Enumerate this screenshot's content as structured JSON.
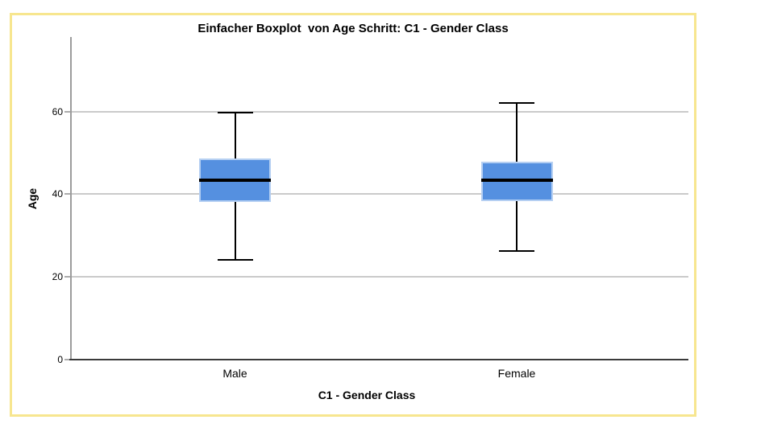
{
  "chart_data": {
    "type": "boxplot",
    "title": "Einfacher Boxplot  von Age Schritt: C1 - Gender Class",
    "xlabel": "C1 - Gender Class",
    "ylabel": "Age",
    "categories": [
      "Male",
      "Female"
    ],
    "yticks": [
      0,
      20,
      40,
      60
    ],
    "ylim": [
      0,
      78
    ],
    "grid": true,
    "legend_position": "none",
    "series": [
      {
        "name": "Male",
        "min": 24.2,
        "q1": 38.2,
        "median": 43.3,
        "q3": 48.7,
        "max": 59.8
      },
      {
        "name": "Female",
        "min": 26.3,
        "q1": 38.4,
        "median": 43.3,
        "q3": 47.9,
        "max": 62.1
      }
    ]
  },
  "colors": {
    "box_fill": "#5590E0",
    "box_border": "#B5CFF2",
    "median_line": "#000000",
    "whisker": "#000000",
    "gridline": "#CACACA",
    "y_axis_line": "#9C9C9C",
    "x_axis_line": "#3A3A3A",
    "tick_mark": "#ABABAB",
    "frame_border": "#F7E68F",
    "background": "#FFFFFF",
    "text": "#000000"
  }
}
